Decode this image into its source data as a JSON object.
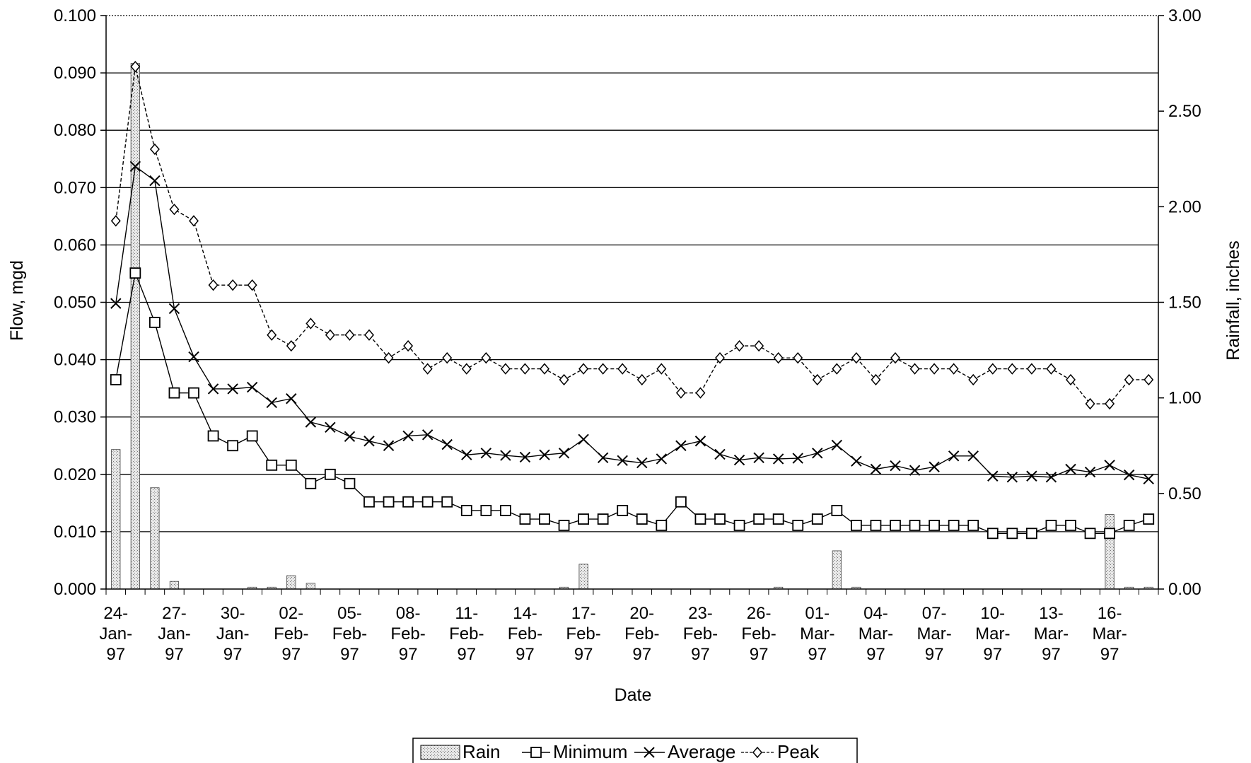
{
  "chart_data": {
    "type": "line",
    "title": "",
    "xlabel": "Date",
    "ylabel": "Flow, mgd",
    "y2label": "Rainfall, inches",
    "ylim": [
      0,
      0.1
    ],
    "y2lim": [
      0,
      3.0
    ],
    "y_ticks": [
      "0.000",
      "0.010",
      "0.020",
      "0.030",
      "0.040",
      "0.050",
      "0.060",
      "0.070",
      "0.080",
      "0.090",
      "0.100"
    ],
    "y2_ticks": [
      "0.00",
      "0.50",
      "1.00",
      "1.50",
      "2.00",
      "2.50",
      "3.00"
    ],
    "x_tick_labels": [
      [
        "24-",
        "Jan-",
        "97"
      ],
      [
        "27-",
        "Jan-",
        "97"
      ],
      [
        "30-",
        "Jan-",
        "97"
      ],
      [
        "02-",
        "Feb-",
        "97"
      ],
      [
        "05-",
        "Feb-",
        "97"
      ],
      [
        "08-",
        "Feb-",
        "97"
      ],
      [
        "11-",
        "Feb-",
        "97"
      ],
      [
        "14-",
        "Feb-",
        "97"
      ],
      [
        "17-",
        "Feb-",
        "97"
      ],
      [
        "20-",
        "Feb-",
        "97"
      ],
      [
        "23-",
        "Feb-",
        "97"
      ],
      [
        "26-",
        "Feb-",
        "97"
      ],
      [
        "01-",
        "Mar-",
        "97"
      ],
      [
        "04-",
        "Mar-",
        "97"
      ],
      [
        "07-",
        "Mar-",
        "97"
      ],
      [
        "10-",
        "Mar-",
        "97"
      ],
      [
        "13-",
        "Mar-",
        "97"
      ],
      [
        "16-",
        "Mar-",
        "97"
      ]
    ],
    "x": [
      "24-Jan-97",
      "25-Jan-97",
      "26-Jan-97",
      "27-Jan-97",
      "28-Jan-97",
      "29-Jan-97",
      "30-Jan-97",
      "31-Jan-97",
      "01-Feb-97",
      "02-Feb-97",
      "03-Feb-97",
      "04-Feb-97",
      "05-Feb-97",
      "06-Feb-97",
      "07-Feb-97",
      "08-Feb-97",
      "09-Feb-97",
      "10-Feb-97",
      "11-Feb-97",
      "12-Feb-97",
      "13-Feb-97",
      "14-Feb-97",
      "15-Feb-97",
      "16-Feb-97",
      "17-Feb-97",
      "18-Feb-97",
      "19-Feb-97",
      "20-Feb-97",
      "21-Feb-97",
      "22-Feb-97",
      "23-Feb-97",
      "24-Feb-97",
      "25-Feb-97",
      "26-Feb-97",
      "27-Feb-97",
      "28-Feb-97",
      "01-Mar-97",
      "02-Mar-97",
      "03-Mar-97",
      "04-Mar-97",
      "05-Mar-97",
      "06-Mar-97",
      "07-Mar-97",
      "08-Mar-97",
      "09-Mar-97",
      "10-Mar-97",
      "11-Mar-97",
      "12-Mar-97",
      "13-Mar-97",
      "14-Mar-97",
      "15-Mar-97",
      "16-Mar-97",
      "17-Mar-97",
      "18-Mar-97"
    ],
    "series": [
      {
        "name": "Rain",
        "kind": "bar",
        "axis": "right",
        "values": [
          0.73,
          2.75,
          0.53,
          0.04,
          0,
          0,
          0,
          0.01,
          0.01,
          0.07,
          0.03,
          0,
          0,
          0,
          0,
          0,
          0,
          0,
          0,
          0,
          0,
          0,
          0,
          0.01,
          0.13,
          0,
          0,
          0,
          0,
          0,
          0,
          0,
          0,
          0,
          0.01,
          0,
          0,
          0.2,
          0.01,
          0,
          0,
          0,
          0,
          0,
          0,
          0,
          0,
          0,
          0,
          0,
          0,
          0.39,
          0.01,
          0.01
        ]
      },
      {
        "name": "Minimum",
        "kind": "line",
        "marker": "square",
        "axis": "left",
        "values": [
          0.0365,
          0.0551,
          0.0465,
          0.0342,
          0.0342,
          0.0267,
          0.025,
          0.0267,
          0.0216,
          0.0216,
          0.0184,
          0.02,
          0.0184,
          0.0152,
          0.0152,
          0.0152,
          0.0152,
          0.0152,
          0.0137,
          0.0137,
          0.0137,
          0.0122,
          0.0122,
          0.0111,
          0.0122,
          0.0122,
          0.0137,
          0.0122,
          0.0111,
          0.0152,
          0.0122,
          0.0122,
          0.0111,
          0.0122,
          0.0122,
          0.0111,
          0.0122,
          0.0137,
          0.0111,
          0.0111,
          0.0111,
          0.0111,
          0.0111,
          0.0111,
          0.0111,
          0.0097,
          0.0097,
          0.0097,
          0.0111,
          0.0111,
          0.0097,
          0.0097,
          0.0111,
          0.0122
        ]
      },
      {
        "name": "Average",
        "kind": "line",
        "marker": "x",
        "axis": "left",
        "values": [
          0.0498,
          0.0737,
          0.0712,
          0.0489,
          0.0405,
          0.0349,
          0.0349,
          0.0352,
          0.0325,
          0.0332,
          0.0291,
          0.0282,
          0.0266,
          0.0258,
          0.025,
          0.0267,
          0.0269,
          0.0252,
          0.0234,
          0.0237,
          0.0233,
          0.023,
          0.0234,
          0.0237,
          0.0261,
          0.0229,
          0.0224,
          0.022,
          0.0227,
          0.025,
          0.0258,
          0.0235,
          0.0225,
          0.0229,
          0.0227,
          0.0228,
          0.0237,
          0.0251,
          0.0223,
          0.0209,
          0.0215,
          0.0207,
          0.0213,
          0.0232,
          0.0232,
          0.0197,
          0.0195,
          0.0197,
          0.0195,
          0.0209,
          0.0204,
          0.0216,
          0.0199,
          0.0192
        ]
      },
      {
        "name": "Peak",
        "kind": "line",
        "marker": "diamond",
        "axis": "left",
        "values": [
          0.0642,
          0.0911,
          0.0767,
          0.0662,
          0.0642,
          0.053,
          0.053,
          0.053,
          0.0443,
          0.0424,
          0.0463,
          0.0443,
          0.0443,
          0.0443,
          0.0403,
          0.0424,
          0.0384,
          0.0403,
          0.0384,
          0.0403,
          0.0384,
          0.0384,
          0.0384,
          0.0365,
          0.0384,
          0.0384,
          0.0384,
          0.0365,
          0.0384,
          0.0342,
          0.0342,
          0.0403,
          0.0424,
          0.0424,
          0.0403,
          0.0403,
          0.0365,
          0.0384,
          0.0403,
          0.0365,
          0.0403,
          0.0384,
          0.0384,
          0.0384,
          0.0365,
          0.0384,
          0.0384,
          0.0384,
          0.0384,
          0.0365,
          0.0323,
          0.0323,
          0.0365,
          0.0365
        ]
      }
    ],
    "legend": [
      "Rain",
      "Minimum",
      "Average",
      "Peak"
    ],
    "legend_position": "bottom-center",
    "grid": true
  }
}
